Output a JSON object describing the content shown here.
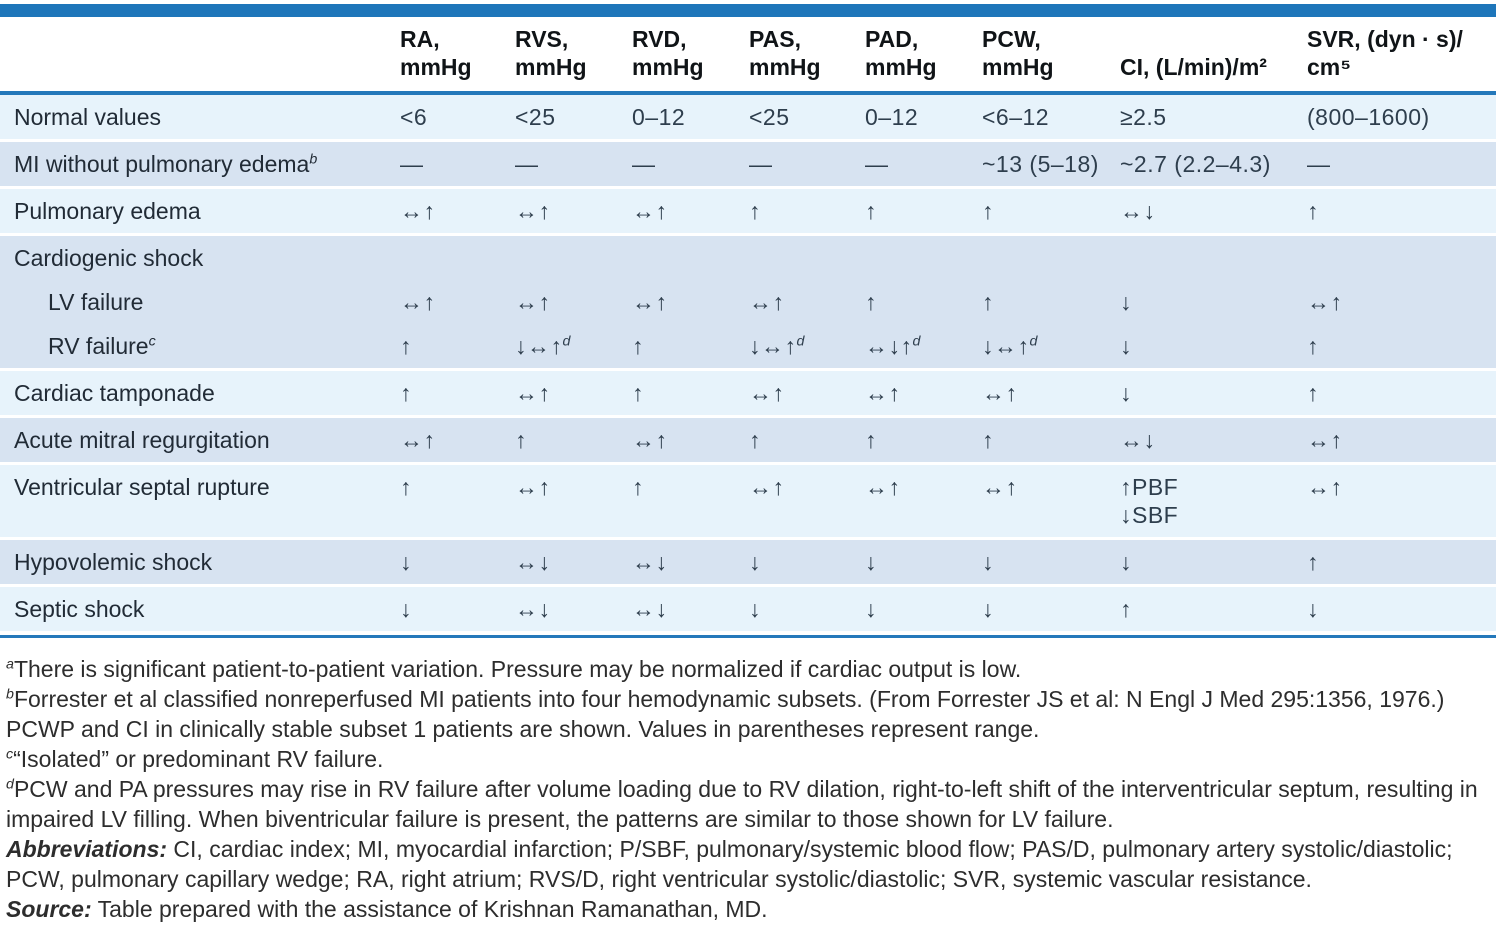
{
  "colors": {
    "accent_blue": "#1e76ba",
    "rule_blue": "#2478ba",
    "row_light": "#e7f3fb",
    "row_dark": "#d7e3f1",
    "text_dark": "#212b36",
    "footnote_text": "#2d2d2d"
  },
  "table": {
    "columns": [
      {
        "name": "column-header-condition",
        "label": ""
      },
      {
        "name": "column-header-ra",
        "label": "RA,\nmmHg"
      },
      {
        "name": "column-header-rvs",
        "label": "RVS,\nmmHg"
      },
      {
        "name": "column-header-rvd",
        "label": "RVD,\nmmHg"
      },
      {
        "name": "column-header-pas",
        "label": "PAS,\nmmHg"
      },
      {
        "name": "column-header-pad",
        "label": "PAD,\nmmHg"
      },
      {
        "name": "column-header-pcw",
        "label": "PCW,\nmmHg"
      },
      {
        "name": "column-header-ci",
        "label": "CI, (L/min)/m²"
      },
      {
        "name": "column-header-svr",
        "label": "SVR, (dyn · s)/\ncm⁵"
      }
    ],
    "rows": [
      {
        "label": "Normal values",
        "band": "light",
        "sep": true,
        "indent": false,
        "section": false,
        "cells": [
          "<6",
          "<25",
          "0–12",
          "<25",
          "0–12",
          "<6–12",
          "≥2.5",
          "(800–1600)"
        ]
      },
      {
        "label": "MI without pulmonary edema{b}",
        "band": "dark",
        "sep": true,
        "indent": false,
        "section": false,
        "cells": [
          "—",
          "—",
          "—",
          "—",
          "—",
          "~13 (5–18)",
          "~2.7 (2.2–4.3)",
          "—"
        ]
      },
      {
        "label": "Pulmonary edema",
        "band": "light",
        "sep": true,
        "indent": false,
        "section": false,
        "cells": [
          "↔↑",
          "↔↑",
          "↔↑",
          "↑",
          "↑",
          "↑",
          "↔↓",
          "↑"
        ]
      },
      {
        "label": "Cardiogenic shock",
        "band": "dark",
        "sep": true,
        "indent": false,
        "section": true,
        "cells": [
          "",
          "",
          "",
          "",
          "",
          "",
          "",
          ""
        ]
      },
      {
        "label": "LV failure",
        "band": "dark",
        "sep": false,
        "indent": true,
        "section": false,
        "cells": [
          "↔↑",
          "↔↑",
          "↔↑",
          "↔↑",
          "↑",
          "↑",
          "↓",
          "↔↑"
        ]
      },
      {
        "label": "RV failure{c}",
        "band": "dark",
        "sep": false,
        "indent": true,
        "section": false,
        "cells": [
          "↑",
          "↓↔↑{d}",
          "↑",
          "↓↔↑{d}",
          "↔↓↑{d}",
          "↓↔↑{d}",
          "↓",
          "↑"
        ]
      },
      {
        "label": "Cardiac tamponade",
        "band": "light",
        "sep": true,
        "indent": false,
        "section": false,
        "cells": [
          "↑",
          "↔↑",
          "↑",
          "↔↑",
          "↔↑",
          "↔↑",
          "↓",
          "↑"
        ]
      },
      {
        "label": "Acute mitral regurgitation",
        "band": "dark",
        "sep": true,
        "indent": false,
        "section": false,
        "cells": [
          "↔↑",
          "↑",
          "↔↑",
          "↑",
          "↑",
          "↑",
          "↔↓",
          "↔↑"
        ]
      },
      {
        "label": "Ventricular septal rupture",
        "band": "light",
        "sep": true,
        "indent": false,
        "section": false,
        "cells": [
          "↑",
          "↔↑",
          "↑",
          "↔↑",
          "↔↑",
          "↔↑",
          "↑PBF\n↓SBF",
          "↔↑"
        ]
      },
      {
        "label": "Hypovolemic shock",
        "band": "dark",
        "sep": true,
        "indent": false,
        "section": false,
        "cells": [
          "↓",
          "↔↓",
          "↔↓",
          "↓",
          "↓",
          "↓",
          "↓",
          "↑"
        ]
      },
      {
        "label": "Septic shock",
        "band": "light",
        "sep": true,
        "indent": false,
        "section": false,
        "cells": [
          "↓",
          "↔↓",
          "↔↓",
          "↓",
          "↓",
          "↓",
          "↑",
          "↓"
        ]
      }
    ]
  },
  "footnotes": {
    "notes": [
      {
        "marker": "a",
        "text": "There is significant patient-to-patient variation. Pressure may be normalized if cardiac output is low."
      },
      {
        "marker": "b",
        "text": "Forrester et al classified nonreperfused MI patients into four hemodynamic subsets. (From Forrester JS et al: N Engl J Med 295:1356, 1976.) PCWP and CI in clinically stable subset 1 patients are shown. Values in parentheses represent range."
      },
      {
        "marker": "c",
        "text": "“Isolated” or predominant RV failure."
      },
      {
        "marker": "d",
        "text": "PCW and PA pressures may rise in RV failure after volume loading due to RV dilation, right-to-left shift of the interventricular septum, resulting in impaired LV filling. When biventricular failure is present, the patterns are similar to those shown for LV failure."
      }
    ],
    "abbreviations_label": "Abbreviations:",
    "abbreviations_text": "CI, cardiac index; MI, myocardial infarction; P/SBF, pulmonary/systemic blood flow; PAS/D, pulmonary artery systolic/diastolic; PCW, pulmonary capillary wedge; RA, right atrium; RVS/D, right ventricular systolic/diastolic; SVR, systemic vascular resistance.",
    "source_label": "Source:",
    "source_text": "Table prepared with the assistance of Krishnan Ramanathan, MD."
  }
}
